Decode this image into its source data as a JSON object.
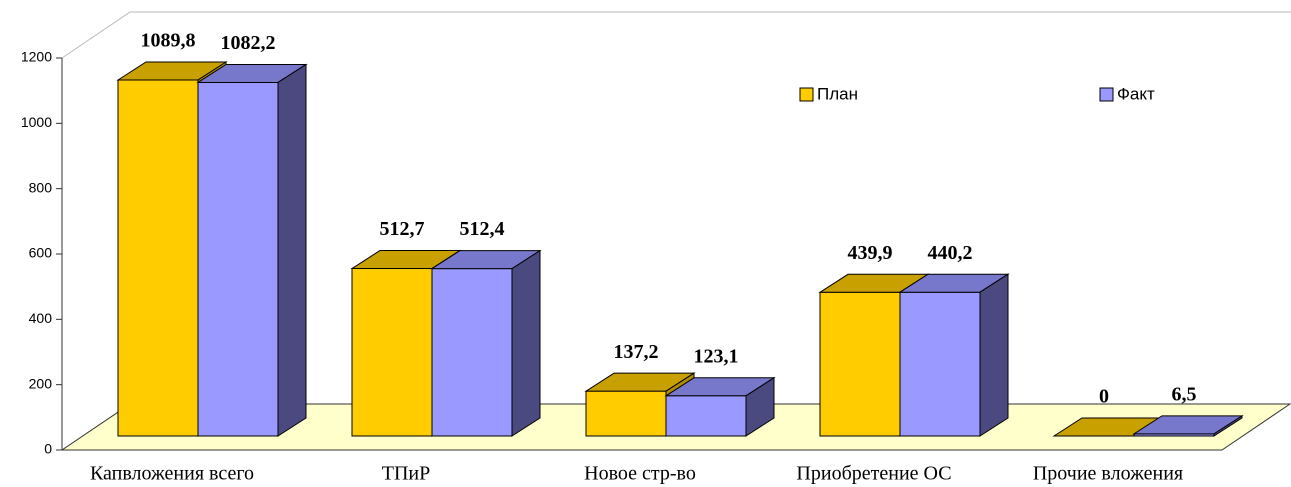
{
  "chart_data": {
    "type": "bar3d",
    "categories": [
      "Капвложения всего",
      "ТПиР",
      "Новое стр-во",
      "Приобретение ОС",
      "Прочие вложения"
    ],
    "series": [
      {
        "name": "План",
        "color": "#ffcc00",
        "values": [
          1089.8,
          512.7,
          137.2,
          439.9,
          0
        ],
        "value_labels": [
          "1089,8",
          "512,7",
          "137,2",
          "439,9",
          "0"
        ]
      },
      {
        "name": "Факт",
        "color": "#9999ff",
        "values": [
          1082.2,
          512.4,
          123.1,
          440.2,
          6.5
        ],
        "value_labels": [
          "1082,2",
          "512,4",
          "123,1",
          "440,2",
          "6,5"
        ]
      }
    ],
    "ylim": [
      0,
      1200
    ],
    "yticks": [
      0,
      200,
      400,
      600,
      800,
      1000,
      1200
    ]
  }
}
